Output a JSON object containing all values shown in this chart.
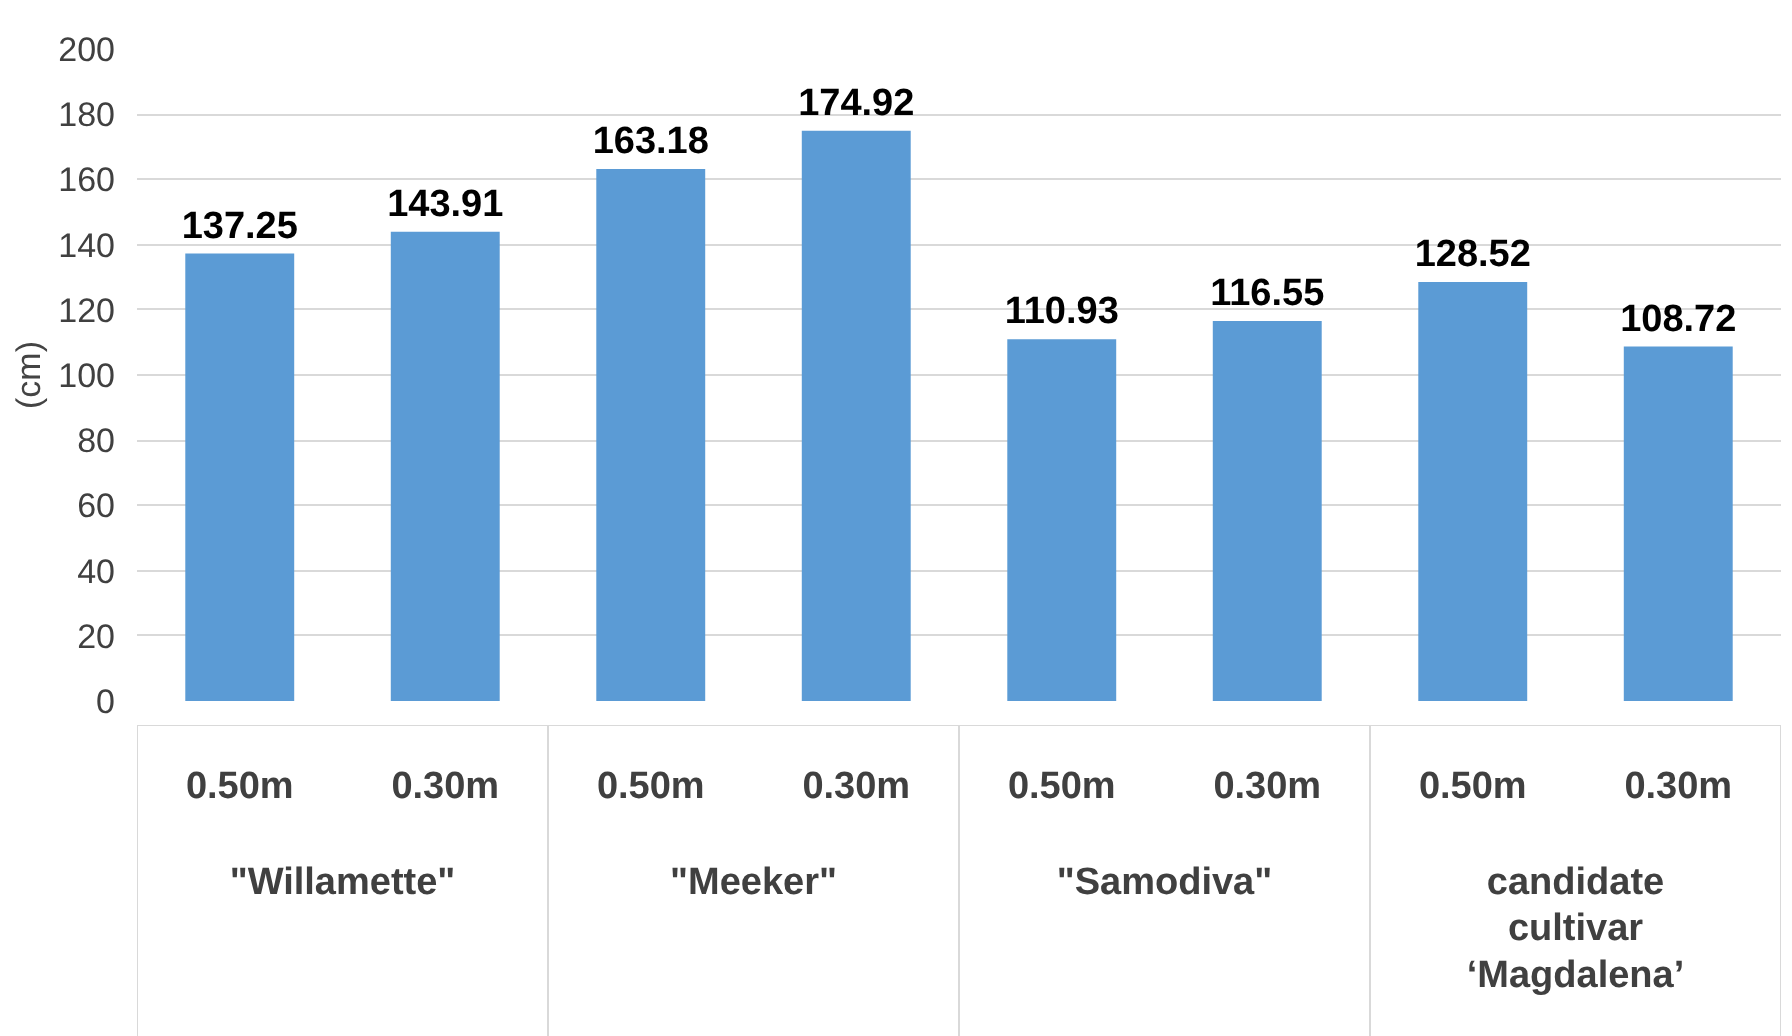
{
  "chart_data": {
    "type": "bar",
    "ylabel": "(cm)",
    "categories": [
      "0.50m",
      "0.30m",
      "0.50m",
      "0.30m",
      "0.50m",
      "0.30m",
      "0.50m",
      "0.30m"
    ],
    "values": [
      137.25,
      143.91,
      163.18,
      174.92,
      110.93,
      116.55,
      128.52,
      108.72
    ],
    "color": "#5b9bd5",
    "ylim": [
      0,
      200
    ],
    "yticks": [
      0,
      20,
      40,
      60,
      80,
      100,
      120,
      140,
      160,
      180,
      200
    ],
    "grid": "y",
    "data_labels": true,
    "annotations": [
      "\"Willamette\"",
      "\"Meeker\"",
      "\"Samodiva\"",
      "candidate cultivar ‘Magdalena’"
    ]
  }
}
